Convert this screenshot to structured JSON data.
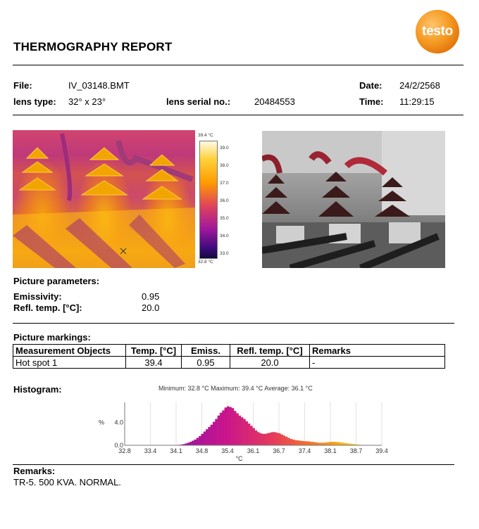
{
  "report": {
    "title": "THERMOGRAPHY REPORT",
    "logo_text": "testo"
  },
  "file_info": {
    "file_label": "File:",
    "file_value": "IV_03148.BMT",
    "date_label": "Date:",
    "date_value": "24/2/2568",
    "lens_type_label": "lens type:",
    "lens_type_value": "32° x 23°",
    "lens_serial_label": "lens serial no.:",
    "lens_serial_value": "20484553",
    "time_label": "Time:",
    "time_value": "11:29:15"
  },
  "color_scale": {
    "max_label": "39.4 °C",
    "min_label": "32.8 °C",
    "ticks": [
      "39.0",
      "38.0",
      "37.0",
      "36.0",
      "35.0",
      "34.0",
      "33.0"
    ]
  },
  "picture_parameters": {
    "heading": "Picture parameters:",
    "emissivity_label": "Emissivity:",
    "emissivity_value": "0.95",
    "refl_label": "Refl. temp. [°C]:",
    "refl_value": "20.0"
  },
  "picture_markings": {
    "heading": "Picture markings:",
    "columns": [
      "Measurement Objects",
      "Temp. [°C]",
      "Emiss.",
      "Refl. temp. [°C]",
      "Remarks"
    ],
    "rows": [
      [
        "Hot spot 1",
        "39.4",
        "0.95",
        "20.0",
        "-"
      ]
    ]
  },
  "histogram": {
    "heading": "Histogram:",
    "caption": "Minimum: 32.8 °C Maximum: 39.4 °C Average: 36.1 °C"
  },
  "chart_data": {
    "type": "bar",
    "x_ticks": [
      "32.8",
      "33.4",
      "34.1",
      "34.8",
      "35.4",
      "36.1",
      "36.7",
      "37.4",
      "38.1",
      "38.7",
      "39.4"
    ],
    "xlabel": "°C",
    "ylabel": "%",
    "y_ticks": [
      "0.0",
      "4.0"
    ],
    "ylim": [
      0,
      7.5
    ],
    "xlim": [
      32.8,
      39.4
    ],
    "bins_x": [
      34.1,
      34.16,
      34.22,
      34.28,
      34.34,
      34.4,
      34.46,
      34.52,
      34.58,
      34.64,
      34.7,
      34.76,
      34.82,
      34.88,
      34.94,
      35.0,
      35.06,
      35.12,
      35.18,
      35.24,
      35.3,
      35.36,
      35.42,
      35.48,
      35.54,
      35.6,
      35.66,
      35.72,
      35.78,
      35.84,
      35.9,
      35.96,
      36.02,
      36.08,
      36.14,
      36.2,
      36.26,
      36.32,
      36.38,
      36.44,
      36.5,
      36.56,
      36.62,
      36.68,
      36.74,
      36.8,
      36.86,
      36.92,
      36.98,
      37.04,
      37.1,
      37.16,
      37.22,
      37.28,
      37.34,
      37.4,
      37.46,
      37.52,
      37.58,
      37.64,
      37.7,
      37.76,
      37.82,
      37.88,
      37.94,
      38.0,
      38.06,
      38.12,
      38.18,
      38.24,
      38.3,
      38.36,
      38.42,
      38.48,
      38.54,
      38.6,
      38.66,
      38.72,
      38.78,
      38.84,
      38.9,
      38.96,
      39.02
    ],
    "values": [
      0.05,
      0.08,
      0.12,
      0.2,
      0.3,
      0.45,
      0.6,
      0.8,
      1.0,
      1.3,
      1.6,
      2.0,
      2.4,
      2.8,
      3.2,
      3.6,
      4.1,
      4.6,
      5.2,
      5.7,
      6.1,
      6.6,
      6.8,
      6.7,
      6.5,
      6.0,
      5.6,
      5.2,
      4.9,
      4.6,
      4.2,
      3.8,
      3.4,
      3.0,
      2.6,
      2.3,
      2.1,
      2.0,
      2.0,
      2.1,
      2.2,
      2.3,
      2.3,
      2.2,
      2.1,
      1.9,
      1.7,
      1.5,
      1.3,
      1.1,
      1.0,
      0.9,
      0.85,
      0.8,
      0.75,
      0.7,
      0.7,
      0.65,
      0.6,
      0.55,
      0.5,
      0.45,
      0.45,
      0.45,
      0.5,
      0.55,
      0.6,
      0.6,
      0.6,
      0.55,
      0.5,
      0.45,
      0.4,
      0.35,
      0.3,
      0.25,
      0.2,
      0.15,
      0.1,
      0.08,
      0.05,
      0.03,
      0.02
    ]
  },
  "remarks": {
    "heading": "Remarks:",
    "text": "TR-5. 500 KVA. NORMAL."
  }
}
